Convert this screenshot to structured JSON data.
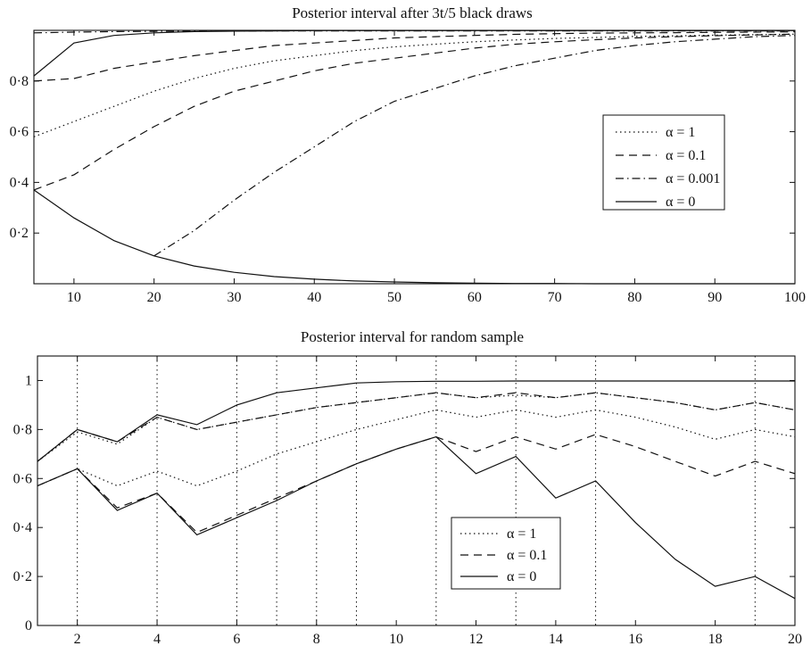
{
  "chart_data": [
    {
      "type": "line",
      "title": "Posterior interval after 3t/5 black draws",
      "xlim": [
        5,
        100
      ],
      "ylim": [
        0,
        1
      ],
      "xticks": [
        10,
        20,
        30,
        40,
        50,
        60,
        70,
        80,
        90,
        100
      ],
      "xtick_labels": [
        "10",
        "20",
        "30",
        "40",
        "50",
        "60",
        "70",
        "80",
        "90",
        "100"
      ],
      "yticks": [
        0.2,
        0.4,
        0.6,
        0.8
      ],
      "ytick_labels": [
        "0·2",
        "0·4",
        "0·6",
        "0·8"
      ],
      "legend_position": "right",
      "legend": [
        "α = 1",
        "α = 0.1",
        "α = 0.001",
        "α = 0"
      ],
      "series": [
        {
          "name": "α = 1",
          "style": "dotted",
          "x": [
            5,
            10,
            15,
            20,
            25,
            30,
            35,
            40,
            45,
            50,
            55,
            60,
            65,
            70,
            75,
            80,
            85,
            90,
            95,
            100
          ],
          "y": [
            0.58,
            0.64,
            0.7,
            0.76,
            0.81,
            0.85,
            0.88,
            0.9,
            0.92,
            0.935,
            0.945,
            0.955,
            0.962,
            0.968,
            0.972,
            0.976,
            0.978,
            0.981,
            0.983,
            0.985
          ]
        },
        {
          "name": "α = 0.1",
          "style": "dashed",
          "x": [
            5,
            10,
            15,
            20,
            25,
            30,
            35,
            40,
            45,
            50,
            55,
            60,
            65,
            70,
            75,
            80,
            85,
            90,
            95,
            100
          ],
          "y": [
            0.8,
            0.81,
            0.85,
            0.875,
            0.9,
            0.92,
            0.94,
            0.95,
            0.96,
            0.97,
            0.975,
            0.98,
            0.984,
            0.987,
            0.989,
            0.99,
            0.991,
            0.992,
            0.993,
            0.994
          ]
        },
        {
          "name": "α = 0.1",
          "style": "dashed",
          "x": [
            5,
            10,
            15,
            20,
            25,
            30,
            35,
            40,
            45,
            50,
            55,
            60,
            65,
            70,
            75,
            80,
            85,
            90,
            95,
            100
          ],
          "y": [
            0.37,
            0.43,
            0.53,
            0.62,
            0.7,
            0.76,
            0.8,
            0.84,
            0.87,
            0.89,
            0.91,
            0.93,
            0.945,
            0.955,
            0.963,
            0.97,
            0.975,
            0.979,
            0.982,
            0.985
          ]
        },
        {
          "name": "α = 0.001",
          "style": "dashdot",
          "x": [
            20,
            25,
            30,
            35,
            40,
            45,
            50,
            55,
            60,
            65,
            70,
            75,
            80,
            85,
            90,
            95,
            100
          ],
          "y": [
            0.11,
            0.21,
            0.33,
            0.44,
            0.54,
            0.64,
            0.72,
            0.77,
            0.82,
            0.86,
            0.89,
            0.92,
            0.94,
            0.955,
            0.965,
            0.975,
            0.98
          ]
        },
        {
          "name": "α = 0.001",
          "style": "dashdot",
          "x": [
            5,
            10,
            15,
            20,
            25,
            30,
            35,
            40,
            45,
            50,
            55,
            60,
            65,
            70,
            75,
            80,
            85,
            90,
            95,
            100
          ],
          "y": [
            0.99,
            0.993,
            0.995,
            0.996,
            0.997,
            0.997,
            0.998,
            0.998,
            0.998,
            0.998,
            0.998,
            0.998,
            0.998,
            0.998,
            0.998,
            0.998,
            0.998,
            0.998,
            0.998,
            0.998
          ]
        },
        {
          "name": "α = 0",
          "style": "solid",
          "x": [
            5,
            10,
            15,
            20,
            25,
            30,
            35,
            40,
            45,
            50,
            55,
            60,
            65,
            70,
            75,
            80,
            85,
            90,
            95,
            100
          ],
          "y": [
            0.82,
            0.95,
            0.98,
            0.99,
            0.995,
            0.997,
            0.998,
            0.999,
            0.999,
            0.999,
            0.999,
            0.999,
            0.999,
            0.999,
            0.999,
            0.999,
            0.999,
            0.999,
            0.999,
            0.999
          ]
        },
        {
          "name": "α = 0",
          "style": "solid",
          "x": [
            5,
            10,
            15,
            20,
            25,
            30,
            35,
            40,
            45,
            50,
            55,
            60,
            65,
            70,
            75,
            80,
            85,
            90,
            95,
            100
          ],
          "y": [
            0.37,
            0.26,
            0.17,
            0.11,
            0.07,
            0.045,
            0.028,
            0.018,
            0.011,
            0.007,
            0.004,
            0.002,
            0.001,
            0.001,
            0.0,
            0.0,
            0.0,
            0.0,
            0.0,
            0.0
          ]
        }
      ]
    },
    {
      "type": "line",
      "title": "Posterior interval for random sample",
      "xlim": [
        1,
        20
      ],
      "ylim": [
        0,
        1.1
      ],
      "xticks": [
        2,
        4,
        6,
        8,
        10,
        12,
        14,
        16,
        18,
        20
      ],
      "xtick_labels": [
        "2",
        "4",
        "6",
        "8",
        "10",
        "12",
        "14",
        "16",
        "18",
        "20"
      ],
      "yticks": [
        0,
        0.2,
        0.4,
        0.6,
        0.8,
        1
      ],
      "ytick_labels": [
        "0",
        "0·2",
        "0·4",
        "0·6",
        "0·8",
        "1"
      ],
      "vertical_dotted_lines_at": [
        2,
        4,
        6,
        7,
        8,
        9,
        11,
        13,
        15,
        19
      ],
      "legend_position": "lower center",
      "legend": [
        "α = 1",
        "α = 0.1",
        "α = 0"
      ],
      "series": [
        {
          "name": "α = 1",
          "style": "dotted",
          "x": [
            1,
            2,
            3,
            4,
            5,
            6,
            7,
            8,
            9,
            10,
            11,
            12,
            13,
            14,
            15,
            16,
            17,
            18,
            19,
            20
          ],
          "y": [
            0.67,
            0.79,
            0.74,
            0.85,
            0.8,
            0.83,
            0.86,
            0.89,
            0.91,
            0.93,
            0.95,
            0.93,
            0.94,
            0.93,
            0.95,
            0.93,
            0.91,
            0.88,
            0.91,
            0.88
          ]
        },
        {
          "name": "α = 1",
          "style": "dotted",
          "x": [
            1,
            2,
            3,
            4,
            5,
            6,
            7,
            8,
            9,
            10,
            11,
            12,
            13,
            14,
            15,
            16,
            17,
            18,
            19,
            20
          ],
          "y": [
            0.57,
            0.64,
            0.57,
            0.63,
            0.57,
            0.63,
            0.7,
            0.75,
            0.8,
            0.84,
            0.88,
            0.85,
            0.88,
            0.85,
            0.88,
            0.85,
            0.81,
            0.76,
            0.8,
            0.77
          ]
        },
        {
          "name": "α = 0.1",
          "style": "dashed",
          "x": [
            1,
            2,
            3,
            4,
            5,
            6,
            7,
            8,
            9,
            10,
            11,
            12,
            13,
            14,
            15,
            16,
            17,
            18,
            19,
            20
          ],
          "y": [
            0.67,
            0.8,
            0.75,
            0.85,
            0.8,
            0.83,
            0.86,
            0.89,
            0.91,
            0.93,
            0.95,
            0.93,
            0.95,
            0.93,
            0.95,
            0.93,
            0.91,
            0.88,
            0.91,
            0.88
          ]
        },
        {
          "name": "α = 0.1",
          "style": "dashed",
          "x": [
            1,
            2,
            3,
            4,
            5,
            6,
            7,
            8,
            9,
            10,
            11,
            12,
            13,
            14,
            15,
            16,
            17,
            18,
            19,
            20
          ],
          "y": [
            0.57,
            0.64,
            0.48,
            0.54,
            0.38,
            0.45,
            0.52,
            0.59,
            0.66,
            0.72,
            0.77,
            0.71,
            0.77,
            0.72,
            0.78,
            0.73,
            0.67,
            0.61,
            0.67,
            0.62
          ]
        },
        {
          "name": "α = 0",
          "style": "solid",
          "x": [
            1,
            2,
            3,
            4,
            5,
            6,
            7,
            8,
            9,
            10,
            11,
            12,
            13,
            14,
            15,
            16,
            17,
            18,
            19,
            20
          ],
          "y": [
            0.67,
            0.8,
            0.75,
            0.86,
            0.82,
            0.9,
            0.95,
            0.97,
            0.99,
            0.995,
            0.997,
            0.997,
            0.998,
            0.998,
            0.998,
            0.998,
            0.998,
            0.998,
            0.998,
            0.998
          ]
        },
        {
          "name": "α = 0",
          "style": "solid",
          "x": [
            1,
            2,
            3,
            4,
            5,
            6,
            7,
            8,
            9,
            10,
            11,
            12,
            13,
            14,
            15,
            16,
            17,
            18,
            19,
            20
          ],
          "y": [
            0.57,
            0.64,
            0.47,
            0.54,
            0.37,
            0.44,
            0.51,
            0.59,
            0.66,
            0.72,
            0.77,
            0.62,
            0.69,
            0.52,
            0.59,
            0.42,
            0.27,
            0.16,
            0.2,
            0.11
          ]
        }
      ]
    }
  ]
}
